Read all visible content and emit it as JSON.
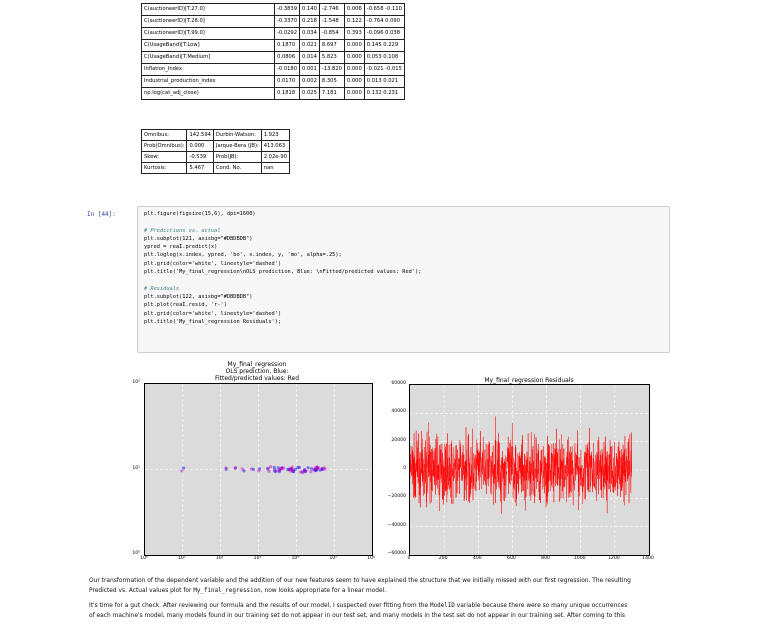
{
  "coef_rows": [
    {
      "name": "C(auctioneerID)[T.27.0]",
      "coef": "-0.3839",
      "se": "0.140",
      "t": "-2.746",
      "p": "0.006",
      "ci": "-0.658 -0.110"
    },
    {
      "name": "C(auctioneerID)[T.28.0]",
      "coef": "-0.3370",
      "se": "0.218",
      "t": "-1.548",
      "p": "0.122",
      "ci": "-0.764 0.090"
    },
    {
      "name": "C(auctioneerID)[T.99.0]",
      "coef": "-0.0292",
      "se": "0.034",
      "t": "-0.854",
      "p": "0.393",
      "ci": "-0.096 0.038"
    },
    {
      "name": "C(UsageBand)[T.Low]",
      "coef": "0.1870",
      "se": "0.021",
      "t": "8.697",
      "p": "0.000",
      "ci": "0.145 0.229"
    },
    {
      "name": "C(UsageBand)[T.Medium]",
      "coef": "0.0806",
      "se": "0.014",
      "t": "5.823",
      "p": "0.000",
      "ci": "0.053 0.108"
    },
    {
      "name": "Inflation_Index",
      "coef": "-0.0180",
      "se": "0.001",
      "t": "-13.820",
      "p": "0.000",
      "ci": "-0.021 -0.015"
    },
    {
      "name": "Industrial_production_index",
      "coef": "0.0170",
      "se": "0.002",
      "t": "8.305",
      "p": "0.000",
      "ci": "0.013 0.021"
    },
    {
      "name": "np.log(cat_adj_close)",
      "coef": "0.1818",
      "se": "0.025",
      "t": "7.181",
      "p": "0.000",
      "ci": "0.132 0.231"
    }
  ],
  "stats_rows": [
    {
      "k1": "Omnibus:",
      "v1": "142.594",
      "k2": "Durbin-Watson:",
      "v2": "1.923"
    },
    {
      "k1": "Prob(Omnibus):",
      "v1": "0.000",
      "k2": "Jarque-Bera (JB):",
      "v2": "413.063"
    },
    {
      "k1": "Skew:",
      "v1": "-0.539",
      "k2": "Prob(JB):",
      "v2": "2.02e-90"
    },
    {
      "k1": "Kurtosis:",
      "v1": "5.467",
      "k2": "Cond. No.",
      "v2": "nan"
    }
  ],
  "cell": {
    "prompt": "In [44]:",
    "lines": [
      {
        "t": "plt.figure(figsize(15,6), dpi=1600)",
        "c": ""
      },
      {
        "t": "",
        "c": ""
      },
      {
        "t": "# Predictions vs. actual",
        "c": "cm"
      },
      {
        "t": "plt.subplot(121, axisbg=\"#DBDBDB\")",
        "c": ""
      },
      {
        "t": "ypred = reaI.predict(x)",
        "c": ""
      },
      {
        "t": "plt.loglog(x.index, ypred, 'bo', x.index, y, 'mo', alpha=.25);",
        "c": ""
      },
      {
        "t": "plt.grid(color='white', linestyle='dashed')",
        "c": ""
      },
      {
        "t": "plt.title('My_final_regression\\nOLS prediction, Blue: \\nFitted/predicted values: Red');",
        "c": ""
      },
      {
        "t": "",
        "c": ""
      },
      {
        "t": "# Residuals",
        "c": "cm"
      },
      {
        "t": "plt.subplot(122, axisbg=\"#DBDBDB\")",
        "c": ""
      },
      {
        "t": "plt.plot(reaI.resid, 'r-')",
        "c": ""
      },
      {
        "t": "plt.grid(color='white', linestyle='dashed')",
        "c": ""
      },
      {
        "t": "plt.title('My_final_regression Residuals');",
        "c": ""
      }
    ]
  },
  "chart_data": [
    {
      "type": "scatter",
      "title": "My_final_regression\nOLS prediction, Blue:\nFitted/predicted values: Red",
      "xscale": "log",
      "yscale": "log",
      "xlim": [
        1,
        1000000
      ],
      "ylim": [
        1,
        100
      ],
      "xticks": [
        "10⁰",
        "10¹",
        "10²",
        "10³",
        "10⁴",
        "10⁵",
        "10⁶"
      ],
      "yticks": [
        "10⁰",
        "10¹",
        "10²"
      ],
      "series": [
        {
          "color": "#0000ff",
          "x": [
            10,
            150,
            250,
            400,
            700,
            1000,
            1800,
            3000,
            6000,
            12000,
            25000,
            40000
          ],
          "y": [
            10,
            10,
            10,
            10,
            10,
            10,
            10,
            10,
            10,
            10,
            10,
            10
          ]
        },
        {
          "color": "#bf00bf",
          "x": [
            10,
            150,
            250,
            400,
            700,
            1000,
            1800,
            3000,
            6000,
            12000,
            25000,
            40000
          ],
          "y": [
            10.2,
            9.9,
            10.1,
            9.8,
            10.2,
            10.0,
            9.9,
            10.3,
            10.1,
            9.7,
            10.2,
            10.0
          ]
        }
      ]
    },
    {
      "type": "line",
      "title": "My_final_regression Residuals",
      "xlim": [
        0,
        1400
      ],
      "ylim": [
        -60000,
        60000
      ],
      "xticks": [
        "0",
        "200",
        "400",
        "600",
        "800",
        "1000",
        "1200",
        "1400"
      ],
      "yticks": [
        "60000",
        "40000",
        "20000",
        "0",
        "−20000",
        "−40000",
        "−60000"
      ],
      "series": [
        {
          "color": "#ff0000",
          "n": 1300,
          "amplitude": 25000
        }
      ]
    }
  ],
  "prose": {
    "p1a": "Our transformation of the dependent variable and the addition of our new features seem to have explained the structure that we initially missed with our first regression. The resulting",
    "p1b_pre": "Predicted vs. Actual values plot for ",
    "p1b_code": "My_final_regression",
    "p1b_post": ", now looks appropriate for a linear model.",
    "p2a_pre": "It's time for a gut check. After reviewing our formula and the results of our model, I suspected over fitting from the ",
    "p2a_code": "ModelID",
    "p2a_post": " variable because there were so many unique occurrences",
    "p2b": "of each machine's model, many models found in our training set do not appear in our test set, and many models in the test set do not appear in our training set. After coming to this"
  }
}
